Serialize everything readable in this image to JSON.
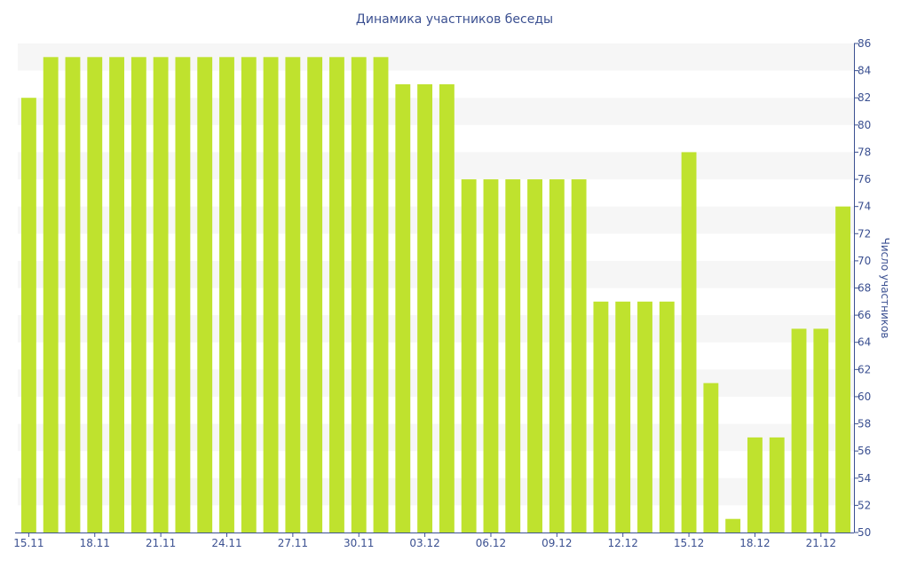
{
  "chart_data": {
    "type": "bar",
    "title": "Динамика участников беседы",
    "xlabel": "",
    "ylabel": "Число участников",
    "ylim": [
      50,
      86
    ],
    "y_ticks": [
      50,
      52,
      54,
      56,
      58,
      60,
      62,
      64,
      66,
      68,
      70,
      72,
      74,
      76,
      78,
      80,
      82,
      84,
      86
    ],
    "y_axis_side": "right",
    "grid": "alternating horizontal bands",
    "bar_color": "#bfe22e",
    "axis_color": "#3b5091",
    "x_ticks": [
      {
        "index": 0,
        "label": "15.11"
      },
      {
        "index": 3,
        "label": "18.11"
      },
      {
        "index": 6,
        "label": "21.11"
      },
      {
        "index": 9,
        "label": "24.11"
      },
      {
        "index": 12,
        "label": "27.11"
      },
      {
        "index": 15,
        "label": "30.11"
      },
      {
        "index": 18,
        "label": "03.12"
      },
      {
        "index": 21,
        "label": "06.12"
      },
      {
        "index": 24,
        "label": "09.12"
      },
      {
        "index": 27,
        "label": "12.12"
      },
      {
        "index": 30,
        "label": "15.12"
      },
      {
        "index": 33,
        "label": "18.12"
      },
      {
        "index": 36,
        "label": "21.12"
      }
    ],
    "categories": [
      "15.11",
      "16.11",
      "17.11",
      "18.11",
      "19.11",
      "20.11",
      "21.11",
      "22.11",
      "23.11",
      "24.11",
      "25.11",
      "26.11",
      "27.11",
      "28.11",
      "29.11",
      "30.11",
      "01.12",
      "02.12",
      "03.12",
      "04.12",
      "05.12",
      "06.12",
      "07.12",
      "08.12",
      "09.12",
      "10.12",
      "11.12",
      "12.12",
      "13.12",
      "14.12",
      "15.12",
      "16.12",
      "17.12",
      "18.12",
      "19.12",
      "20.12",
      "21.12",
      "22.12"
    ],
    "values": [
      82,
      85,
      85,
      85,
      85,
      85,
      85,
      85,
      85,
      85,
      85,
      85,
      85,
      85,
      85,
      85,
      85,
      83,
      83,
      83,
      76,
      76,
      76,
      76,
      76,
      76,
      67,
      67,
      67,
      67,
      78,
      61,
      51,
      57,
      57,
      65,
      65,
      74
    ]
  }
}
